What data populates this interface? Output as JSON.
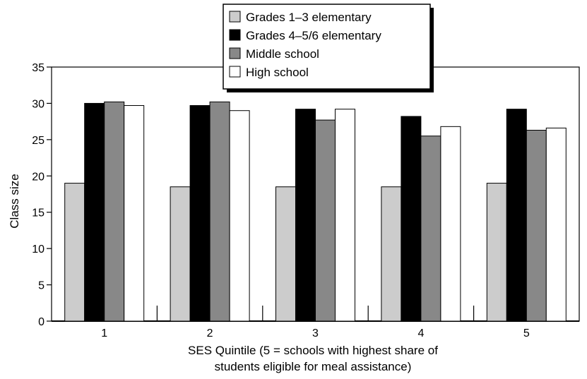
{
  "chart_data": {
    "type": "bar",
    "xlabel_lines": [
      "SES Quintile (5 = schools with highest share of",
      "students eligible for meal assistance)"
    ],
    "ylabel": "Class size",
    "ylim": [
      0,
      35
    ],
    "yticks": [
      0,
      5,
      10,
      15,
      20,
      25,
      30,
      35
    ],
    "categories": [
      "1",
      "2",
      "3",
      "4",
      "5"
    ],
    "legend_position": "top-center",
    "grid": false,
    "series": [
      {
        "name": "Grades 1–3 elementary",
        "color": "#cccccc",
        "values": [
          19.0,
          18.5,
          18.5,
          18.5,
          19.0
        ]
      },
      {
        "name": "Grades 4–5/6 elementary",
        "color": "#000000",
        "values": [
          30.0,
          29.7,
          29.2,
          28.2,
          29.2
        ]
      },
      {
        "name": "Middle school",
        "color": "#888888",
        "values": [
          30.2,
          30.2,
          27.7,
          25.5,
          26.3
        ]
      },
      {
        "name": "High school",
        "color": "#ffffff",
        "values": [
          29.7,
          29.0,
          29.2,
          26.8,
          26.6
        ]
      }
    ]
  }
}
